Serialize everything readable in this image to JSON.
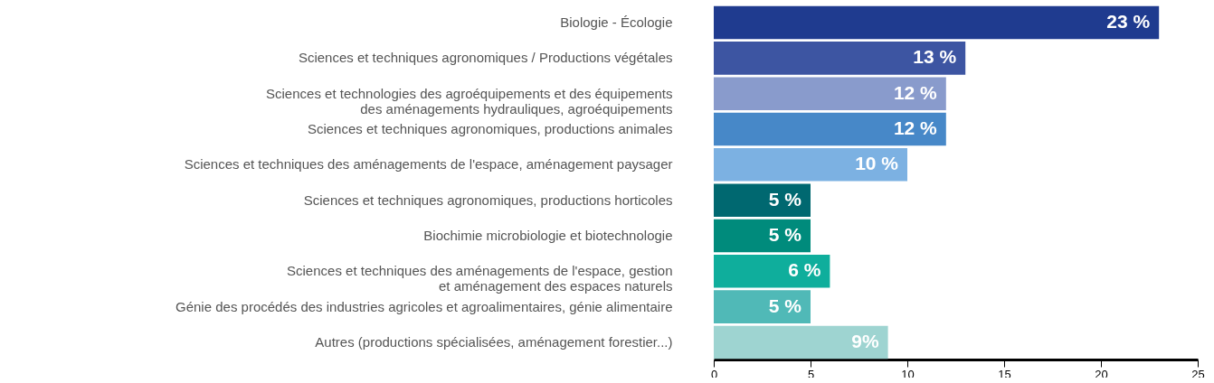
{
  "chart_data": {
    "type": "bar",
    "orientation": "horizontal",
    "categories": [
      "Biologie - Écologie",
      "Sciences et techniques agronomiques / Productions végétales",
      "Sciences et technologies des agroéquipements et des équipements\ndes aménagements hydrauliques, agroéquipements",
      "Sciences et techniques agronomiques, productions animales",
      "Sciences et techniques des aménagements de l'espace, aménagement paysager",
      "Sciences et techniques agronomiques, productions horticoles",
      "Biochimie microbiologie et biotechnologie",
      "Sciences et techniques des aménagements de l'espace, gestion\net aménagement des espaces naturels",
      "Génie des procédés des industries agricoles et agroalimentaires, génie alimentaire",
      "Autres (productions spécialisées, aménagement forestier...)"
    ],
    "values": [
      23,
      13,
      12,
      12,
      10,
      5,
      5,
      6,
      5,
      9
    ],
    "value_labels": [
      "23 %",
      "13 %",
      "12 %",
      "12 %",
      "10 %",
      "5 %",
      "5 %",
      "6 %",
      "5 %",
      "9%"
    ],
    "colors": [
      "#1f3b8f",
      "#3d55a2",
      "#899bcc",
      "#4788c8",
      "#7cb1e2",
      "#006870",
      "#008b7c",
      "#0fae9c",
      "#50b9b7",
      "#9ed4d1"
    ],
    "xlim": [
      0,
      25
    ],
    "xticks": [
      0,
      5,
      10,
      15,
      20,
      25
    ],
    "grid": false
  }
}
